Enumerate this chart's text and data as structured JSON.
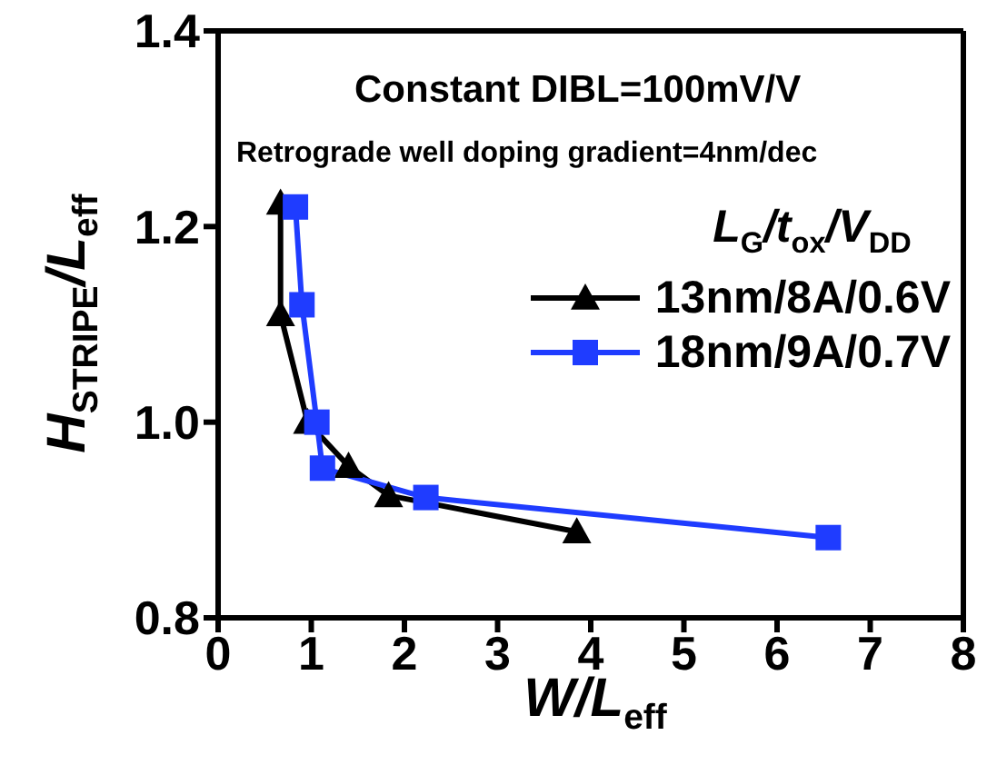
{
  "chart_data": {
    "type": "line",
    "xlabel": "W/L$_{eff}$",
    "ylabel": "H$_{STRIPE}$/L$_{eff}$",
    "legend_title": "L$_{G}$/t$_{ox}$/V$_{DD}$",
    "annotations": [
      "Constant DIBL=100mV/V",
      "Retrograde well doping gradient=4nm/dec"
    ],
    "series": [
      {
        "name": "13nm/8A/0.6V",
        "color": "#000000",
        "marker": "triangle",
        "x": [
          0.67,
          0.67,
          0.96,
          1.4,
          1.83,
          3.85
        ],
        "values": [
          1.224,
          1.11,
          1.0,
          0.955,
          0.925,
          0.888
        ]
      },
      {
        "name": "18nm/9A/0.7V",
        "color": "#1f3cff",
        "marker": "square",
        "x": [
          0.83,
          0.9,
          1.06,
          1.12,
          2.23,
          6.55
        ],
        "values": [
          1.22,
          1.12,
          1.0,
          0.953,
          0.923,
          0.882
        ]
      }
    ],
    "xlim": [
      0,
      8
    ],
    "xticks": [
      0,
      1,
      2,
      3,
      4,
      5,
      6,
      7,
      8
    ],
    "ylim": [
      0.8,
      1.4
    ],
    "yticks": [
      {
        "value": 0.8,
        "label": "0.8"
      },
      {
        "value": 1.0,
        "label": "1.0"
      },
      {
        "value": 1.2,
        "label": "1.2"
      },
      {
        "value": 1.4,
        "label": "1.4"
      }
    ],
    "legend": "top right",
    "line_style": "solid"
  }
}
